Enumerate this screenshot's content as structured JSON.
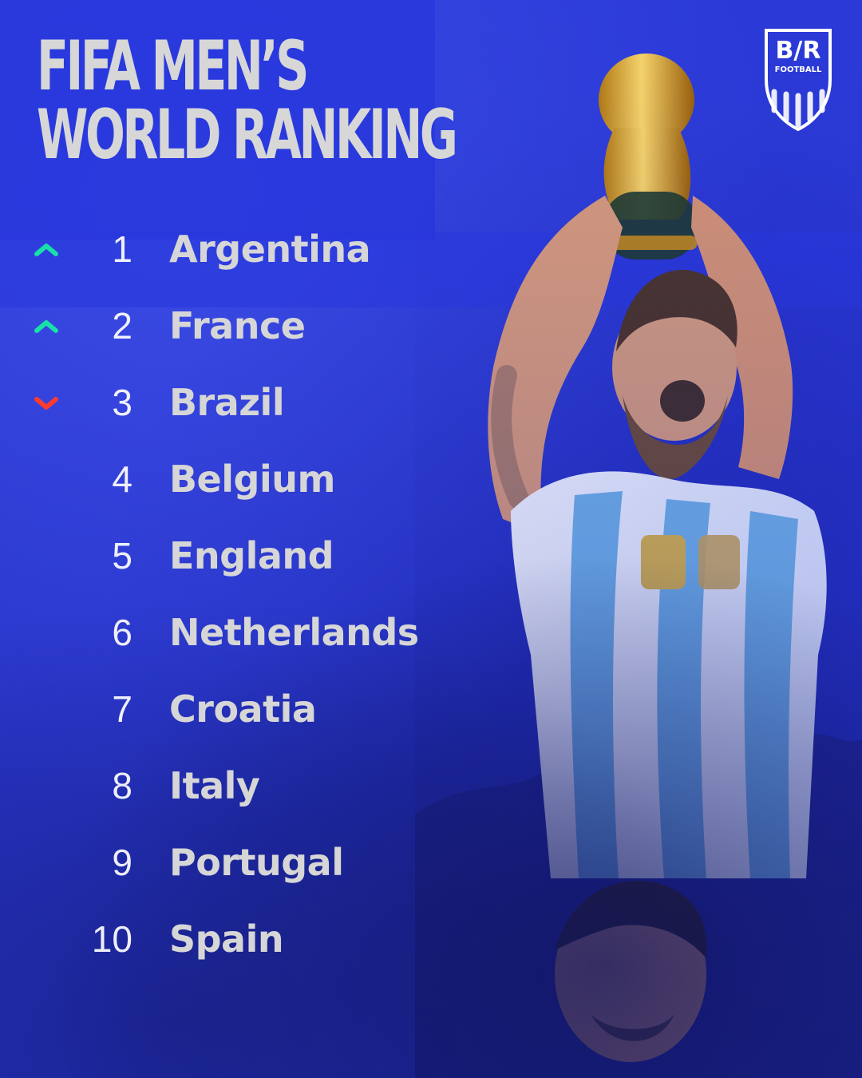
{
  "colors": {
    "background": "#2a3bd3",
    "title_text": "#d7d7d7",
    "trend_up": "#19e0a8",
    "trend_down": "#ff3b2f"
  },
  "header": {
    "title_line_1": "FIFA MEN’S",
    "title_line_2": "WORLD RANKING"
  },
  "brand": {
    "logo_text": "B/R",
    "logo_subtext": "FOOTBALL"
  },
  "ranking": {
    "items": [
      {
        "rank": "1",
        "country": "Argentina",
        "trend": "up",
        "trend_icon": "chevron-up-icon"
      },
      {
        "rank": "2",
        "country": "France",
        "trend": "up",
        "trend_icon": "chevron-up-icon"
      },
      {
        "rank": "3",
        "country": "Brazil",
        "trend": "down",
        "trend_icon": "chevron-down-icon"
      },
      {
        "rank": "4",
        "country": "Belgium",
        "trend": "none",
        "trend_icon": ""
      },
      {
        "rank": "5",
        "country": "England",
        "trend": "none",
        "trend_icon": ""
      },
      {
        "rank": "6",
        "country": "Netherlands",
        "trend": "none",
        "trend_icon": ""
      },
      {
        "rank": "7",
        "country": "Croatia",
        "trend": "none",
        "trend_icon": ""
      },
      {
        "rank": "8",
        "country": "Italy",
        "trend": "none",
        "trend_icon": ""
      },
      {
        "rank": "9",
        "country": "Portugal",
        "trend": "none",
        "trend_icon": ""
      },
      {
        "rank": "10",
        "country": "Spain",
        "trend": "none",
        "trend_icon": ""
      }
    ]
  }
}
